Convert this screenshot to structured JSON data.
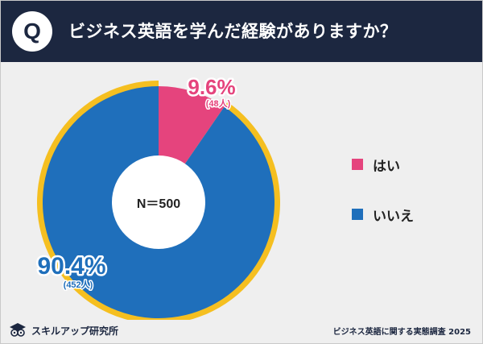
{
  "header": {
    "badge_letter": "Q",
    "title": "ビジネス英語を学んだ経験がありますか？"
  },
  "colors": {
    "header_bg": "#1c2740",
    "yes": "#e5447d",
    "no": "#1f6fbb",
    "ring": "#f5bf20",
    "background": "#efefef"
  },
  "chart_data": {
    "type": "pie",
    "style": "donut",
    "center_label": "N＝500",
    "slices": [
      {
        "label": "はい",
        "percent": 9.6,
        "percent_label": "9.6%",
        "count_label": "(48人)",
        "color": "#e5447d"
      },
      {
        "label": "いいえ",
        "percent": 90.4,
        "percent_label": "90.4%",
        "count_label": "(452人)",
        "color": "#1f6fbb"
      }
    ],
    "legend_position": "right"
  },
  "footer": {
    "logo_text": "スキルアップ研究所",
    "source": "ビジネス英語に関する実態調査 2025"
  }
}
